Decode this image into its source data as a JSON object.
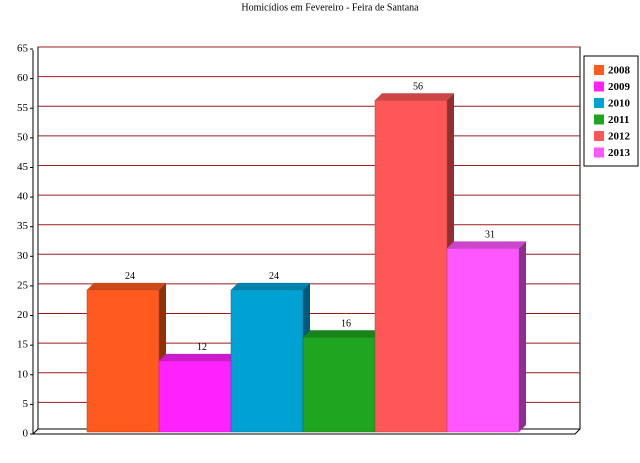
{
  "chart_data": {
    "type": "bar3d",
    "title": "Homicídios em Fevereiro - Feira de Santana",
    "categories": [
      null
    ],
    "series": [
      {
        "name": "2008",
        "color": "#ff5a1e",
        "values": [
          24
        ]
      },
      {
        "name": "2009",
        "color": "#ff22ff",
        "values": [
          12
        ]
      },
      {
        "name": "2010",
        "color": "#00a2d4",
        "values": [
          24
        ]
      },
      {
        "name": "2011",
        "color": "#1fa51f",
        "values": [
          16
        ]
      },
      {
        "name": "2012",
        "color": "#ff5757",
        "values": [
          56
        ]
      },
      {
        "name": "2013",
        "color": "#ff57ff",
        "values": [
          31
        ]
      }
    ],
    "ylim": [
      0,
      65
    ],
    "yticks": [
      0,
      5,
      10,
      15,
      20,
      25,
      30,
      35,
      40,
      45,
      50,
      55,
      60,
      65
    ],
    "grid": true,
    "grid_color": "#a01c1c",
    "legend": "right"
  }
}
